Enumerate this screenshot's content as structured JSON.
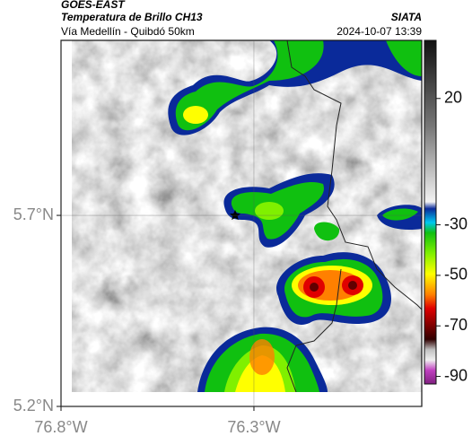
{
  "header": {
    "title": "GOES-EAST",
    "subtitle": "Temperatura de Brillo CH13",
    "source": "SIATA",
    "route": "Vía Medellín - Quibdó 50km",
    "timestamp": "2024-10-07 13:39"
  },
  "map": {
    "xlim": [
      -76.8,
      -75.865
    ],
    "ylim": [
      5.2,
      6.158
    ],
    "xticks": [
      {
        "value": -76.8,
        "label": "76.8°W"
      },
      {
        "value": -76.3,
        "label": "76.3°W"
      }
    ],
    "yticks": [
      {
        "value": 5.7,
        "label": "5.7°N"
      },
      {
        "value": 5.2,
        "label": "5.2°N"
      }
    ],
    "grid": true
  },
  "colorbar": {
    "clim": [
      -93,
      43
    ],
    "ticks": [
      20,
      -30,
      -50,
      -70,
      -90
    ]
  }
}
